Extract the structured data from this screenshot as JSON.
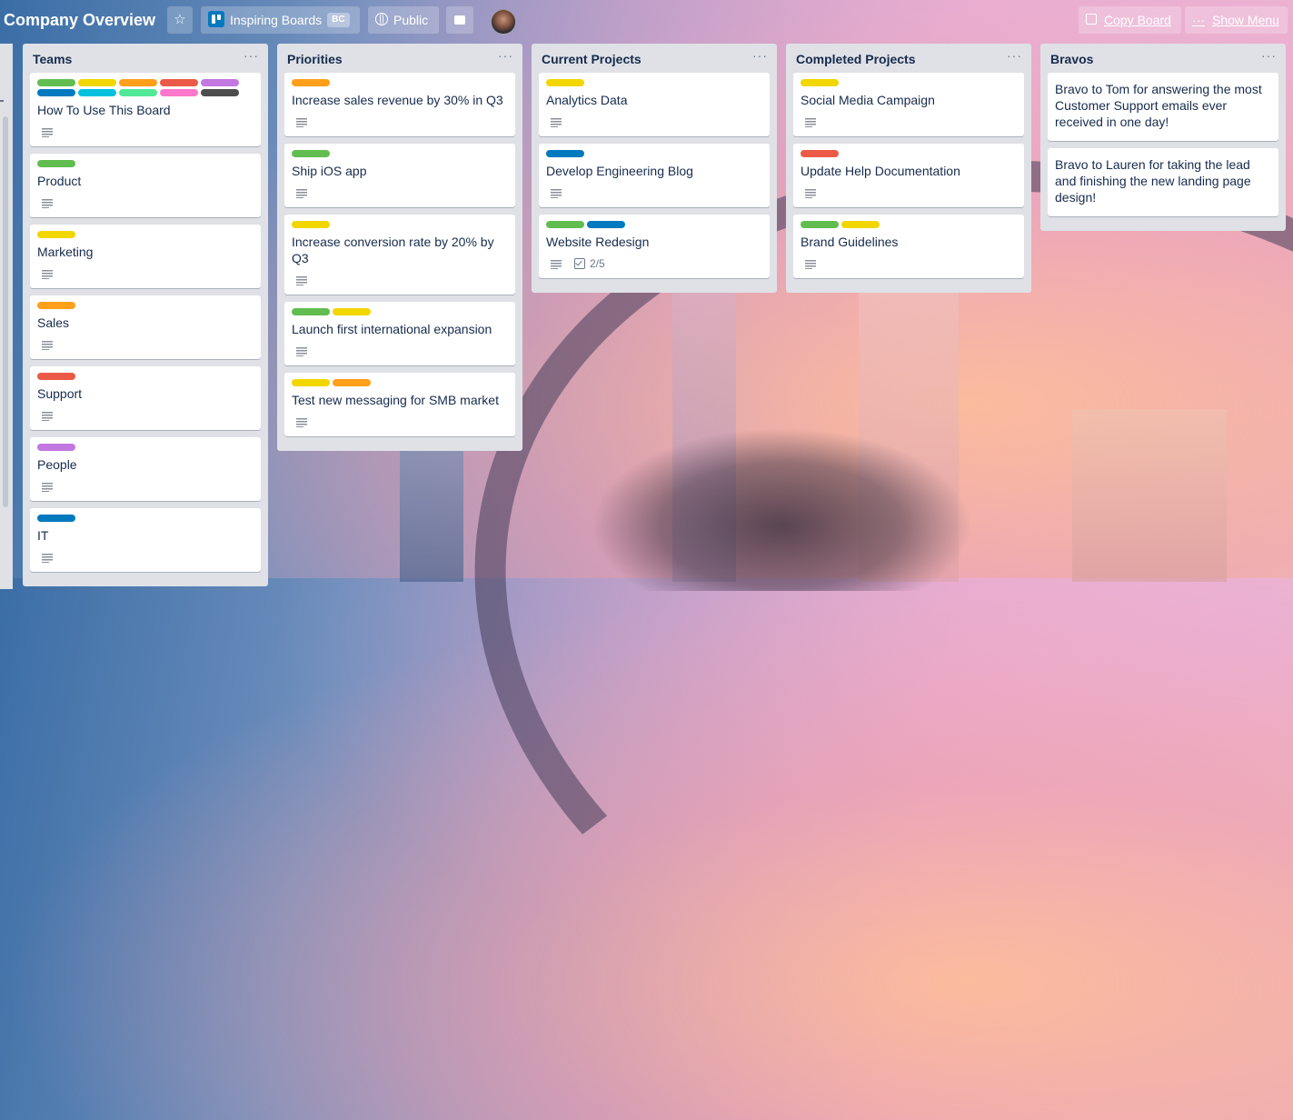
{
  "header": {
    "board_title": "Company Overview",
    "team_name": "Inspiring Boards",
    "team_badge": "BC",
    "visibility": "Public",
    "copy_board": "Copy Board",
    "show_menu": "Show Menu",
    "star_glyph": "☆",
    "menu_glyph": "···"
  },
  "label_colors": {
    "green": "#61bd4f",
    "yellow": "#f2d600",
    "orange": "#ff9f1a",
    "red": "#eb5a46",
    "purple": "#c377e0",
    "blue": "#0079bf",
    "sky": "#00c2e0",
    "lime": "#51e898",
    "pink": "#ff78cb",
    "black": "#4d4d4d"
  },
  "lists": [
    {
      "title": "Teams",
      "cards": [
        {
          "title": "How To Use This Board",
          "labels": [
            "green",
            "yellow",
            "orange",
            "red",
            "purple",
            "blue",
            "sky",
            "lime",
            "pink",
            "black"
          ],
          "description": true
        },
        {
          "title": "Product",
          "labels": [
            "green"
          ],
          "description": true
        },
        {
          "title": "Marketing",
          "labels": [
            "yellow"
          ],
          "description": true
        },
        {
          "title": "Sales",
          "labels": [
            "orange"
          ],
          "description": true
        },
        {
          "title": "Support",
          "labels": [
            "red"
          ],
          "description": true
        },
        {
          "title": "People",
          "labels": [
            "purple"
          ],
          "description": true
        },
        {
          "title": "IT",
          "labels": [
            "blue"
          ],
          "description": true
        }
      ]
    },
    {
      "title": "Priorities",
      "cards": [
        {
          "title": "Increase sales revenue by 30% in Q3",
          "labels": [
            "orange"
          ],
          "description": true
        },
        {
          "title": "Ship iOS app",
          "labels": [
            "green"
          ],
          "description": true
        },
        {
          "title": "Increase conversion rate by 20% by Q3",
          "labels": [
            "yellow"
          ],
          "description": true
        },
        {
          "title": "Launch first international expansion",
          "labels": [
            "green",
            "yellow"
          ],
          "description": true
        },
        {
          "title": "Test new messaging for SMB market",
          "labels": [
            "yellow",
            "orange"
          ],
          "description": true
        }
      ]
    },
    {
      "title": "Current Projects",
      "cards": [
        {
          "title": "Analytics Data",
          "labels": [
            "yellow"
          ],
          "description": true
        },
        {
          "title": "Develop Engineering Blog",
          "labels": [
            "blue"
          ],
          "description": true
        },
        {
          "title": "Website Redesign",
          "labels": [
            "green",
            "blue"
          ],
          "description": true,
          "checklist": "2/5"
        }
      ]
    },
    {
      "title": "Completed Projects",
      "cards": [
        {
          "title": "Social Media Campaign",
          "labels": [
            "yellow"
          ],
          "description": true
        },
        {
          "title": "Update Help Documentation",
          "labels": [
            "red"
          ],
          "description": true
        },
        {
          "title": "Brand Guidelines",
          "labels": [
            "green",
            "yellow"
          ],
          "description": true
        }
      ]
    },
    {
      "title": "Bravos",
      "cards": [
        {
          "title": "Bravo to Tom for answering the most Customer Support emails ever received in one day!",
          "labels": [],
          "description": false
        },
        {
          "title": "Bravo to Lauren for taking the lead and finishing the new landing page design!",
          "labels": [],
          "description": false
        }
      ]
    }
  ]
}
